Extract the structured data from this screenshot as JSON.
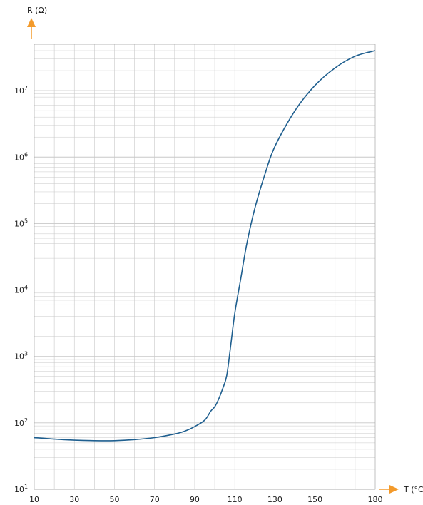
{
  "chart_data": {
    "type": "line",
    "title": "",
    "xlabel": "T (°C",
    "ylabel": "R (Ω)",
    "y_scale": "log",
    "xlim": [
      10,
      180
    ],
    "ylim": [
      10,
      50000000
    ],
    "x_ticks": [
      {
        "value": 10,
        "label": "10"
      },
      {
        "value": 30,
        "label": "30"
      },
      {
        "value": 50,
        "label": "50"
      },
      {
        "value": 70,
        "label": "70"
      },
      {
        "value": 90,
        "label": "90"
      },
      {
        "value": 110,
        "label": "110"
      },
      {
        "value": 130,
        "label": "130"
      },
      {
        "value": 150,
        "label": "150"
      },
      {
        "value": 180,
        "label": "180"
      }
    ],
    "y_ticks": [
      {
        "value": 10,
        "base": "10",
        "exp": "1"
      },
      {
        "value": 100,
        "base": "10",
        "exp": "2"
      },
      {
        "value": 1000,
        "base": "10",
        "exp": "3"
      },
      {
        "value": 10000,
        "base": "10",
        "exp": "4"
      },
      {
        "value": 100000,
        "base": "10",
        "exp": "5"
      },
      {
        "value": 1000000,
        "base": "10",
        "exp": "6"
      },
      {
        "value": 10000000,
        "base": "10",
        "exp": "7"
      }
    ],
    "grid": true,
    "colors": {
      "line": "#1f5f8f",
      "arrow": "#f39a2b",
      "grid": "#c8c8c8",
      "axis": "#888888"
    },
    "series": [
      {
        "x": [
          10,
          20,
          30,
          40,
          50,
          60,
          70,
          80,
          85,
          90,
          95,
          98,
          100,
          102,
          104,
          106,
          108,
          110,
          113,
          116,
          120,
          125,
          130,
          140,
          150,
          160,
          170,
          180
        ],
        "y": [
          60,
          57,
          55,
          54,
          54,
          56,
          60,
          68,
          75,
          88,
          110,
          150,
          175,
          230,
          330,
          520,
          1500,
          4500,
          15000,
          50000,
          170000,
          550000,
          1450000,
          5000000,
          12000000,
          22000000,
          33000000,
          40000000
        ]
      }
    ]
  }
}
